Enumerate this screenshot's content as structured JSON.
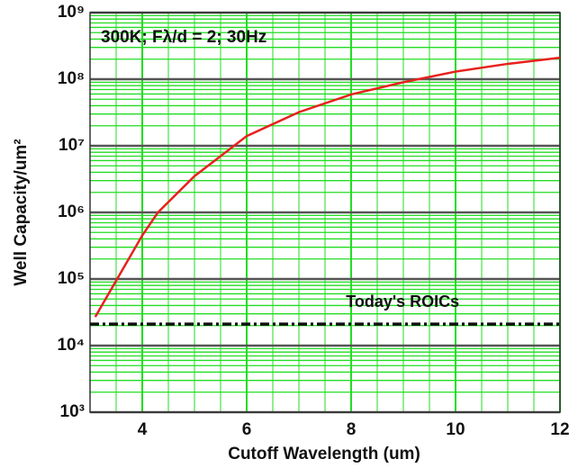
{
  "chart_data": {
    "type": "line",
    "xlabel": "Cutoff Wavelength (um)",
    "ylabel": "Well Capacity/um²",
    "annotations": [
      {
        "text": "300K; Fλ/d = 2; 30Hz"
      }
    ],
    "xlim": [
      3,
      12
    ],
    "xticks": [
      4,
      6,
      8,
      10,
      12
    ],
    "ylim": [
      1000,
      1000000000
    ],
    "log_y": true,
    "yticks": [
      {
        "value": 1000,
        "label": "10³"
      },
      {
        "value": 10000,
        "label": "10⁴"
      },
      {
        "value": 100000,
        "label": "10⁵"
      },
      {
        "value": 1000000,
        "label": "10⁶"
      },
      {
        "value": 10000000,
        "label": "10⁷"
      },
      {
        "value": 100000000,
        "label": "10⁸"
      },
      {
        "value": 1000000000,
        "label": "10⁹"
      }
    ],
    "grid": true,
    "minor_grid": true,
    "grid_color": "#22dd22",
    "series": [
      {
        "color": "#e8211d",
        "style": "solid",
        "x": [
          3.1,
          4,
          4.3,
          5,
          6,
          7,
          8,
          9,
          10,
          11,
          12
        ],
        "values": [
          27000,
          450000,
          1000000,
          3500000,
          14000000,
          32000000,
          59000000,
          90000000,
          130000000,
          170000000,
          210000000
        ]
      },
      {
        "name": "Today's ROICs",
        "color": "#111111",
        "style": "dashdot",
        "x": [
          3,
          12
        ],
        "values": [
          21000,
          21000
        ]
      }
    ]
  }
}
